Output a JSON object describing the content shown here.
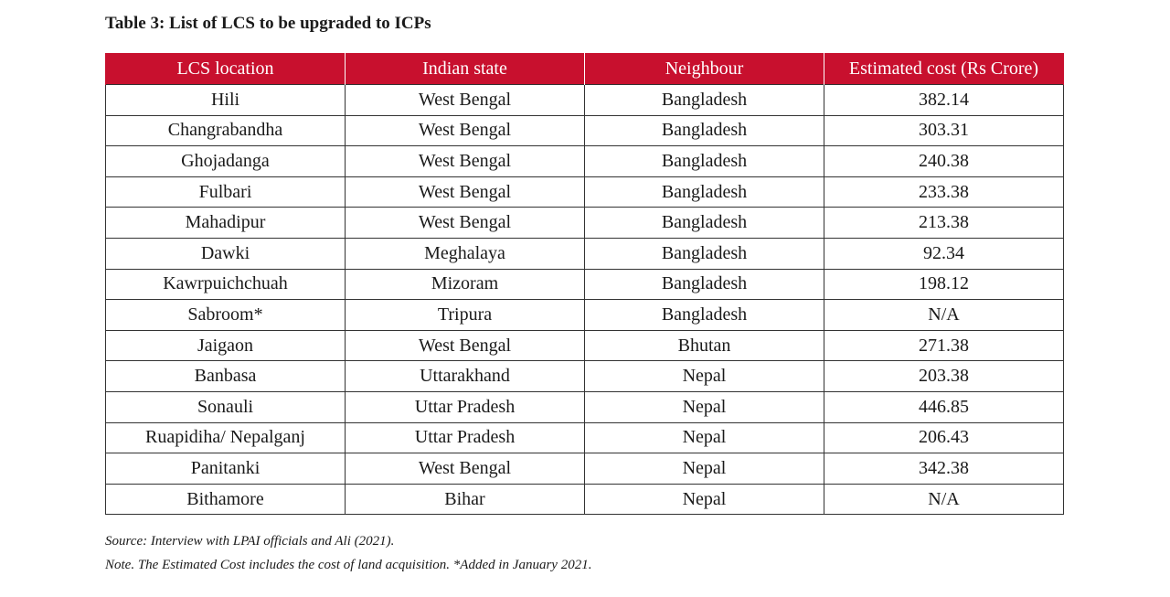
{
  "title": "Table 3: List of LCS to be upgraded to ICPs",
  "table": {
    "header": [
      "LCS location",
      "Indian state",
      "Neighbour",
      "Estimated cost (Rs Crore)"
    ],
    "rows": [
      [
        "Hili",
        "West Bengal",
        "Bangladesh",
        "382.14"
      ],
      [
        "Changrabandha",
        "West Bengal",
        "Bangladesh",
        "303.31"
      ],
      [
        "Ghojadanga",
        "West Bengal",
        "Bangladesh",
        "240.38"
      ],
      [
        "Fulbari",
        "West Bengal",
        "Bangladesh",
        "233.38"
      ],
      [
        "Mahadipur",
        "West Bengal",
        "Bangladesh",
        "213.38"
      ],
      [
        "Dawki",
        "Meghalaya",
        "Bangladesh",
        "92.34"
      ],
      [
        "Kawrpuichchuah",
        "Mizoram",
        "Bangladesh",
        "198.12"
      ],
      [
        "Sabroom*",
        "Tripura",
        "Bangladesh",
        "N/A"
      ],
      [
        "Jaigaon",
        "West Bengal",
        "Bhutan",
        "271.38"
      ],
      [
        "Banbasa",
        "Uttarakhand",
        "Nepal",
        "203.38"
      ],
      [
        "Sonauli",
        "Uttar Pradesh",
        "Nepal",
        "446.85"
      ],
      [
        "Ruapidiha/ Nepalganj",
        "Uttar Pradesh",
        "Nepal",
        "206.43"
      ],
      [
        "Panitanki",
        "West Bengal",
        "Nepal",
        "342.38"
      ],
      [
        "Bithamore",
        "Bihar",
        "Nepal",
        "N/A"
      ]
    ]
  },
  "source": "Source: Interview with LPAI officials and Ali (2021).",
  "note": "Note. The Estimated Cost includes the cost of land acquisition. *Added in January 2021."
}
